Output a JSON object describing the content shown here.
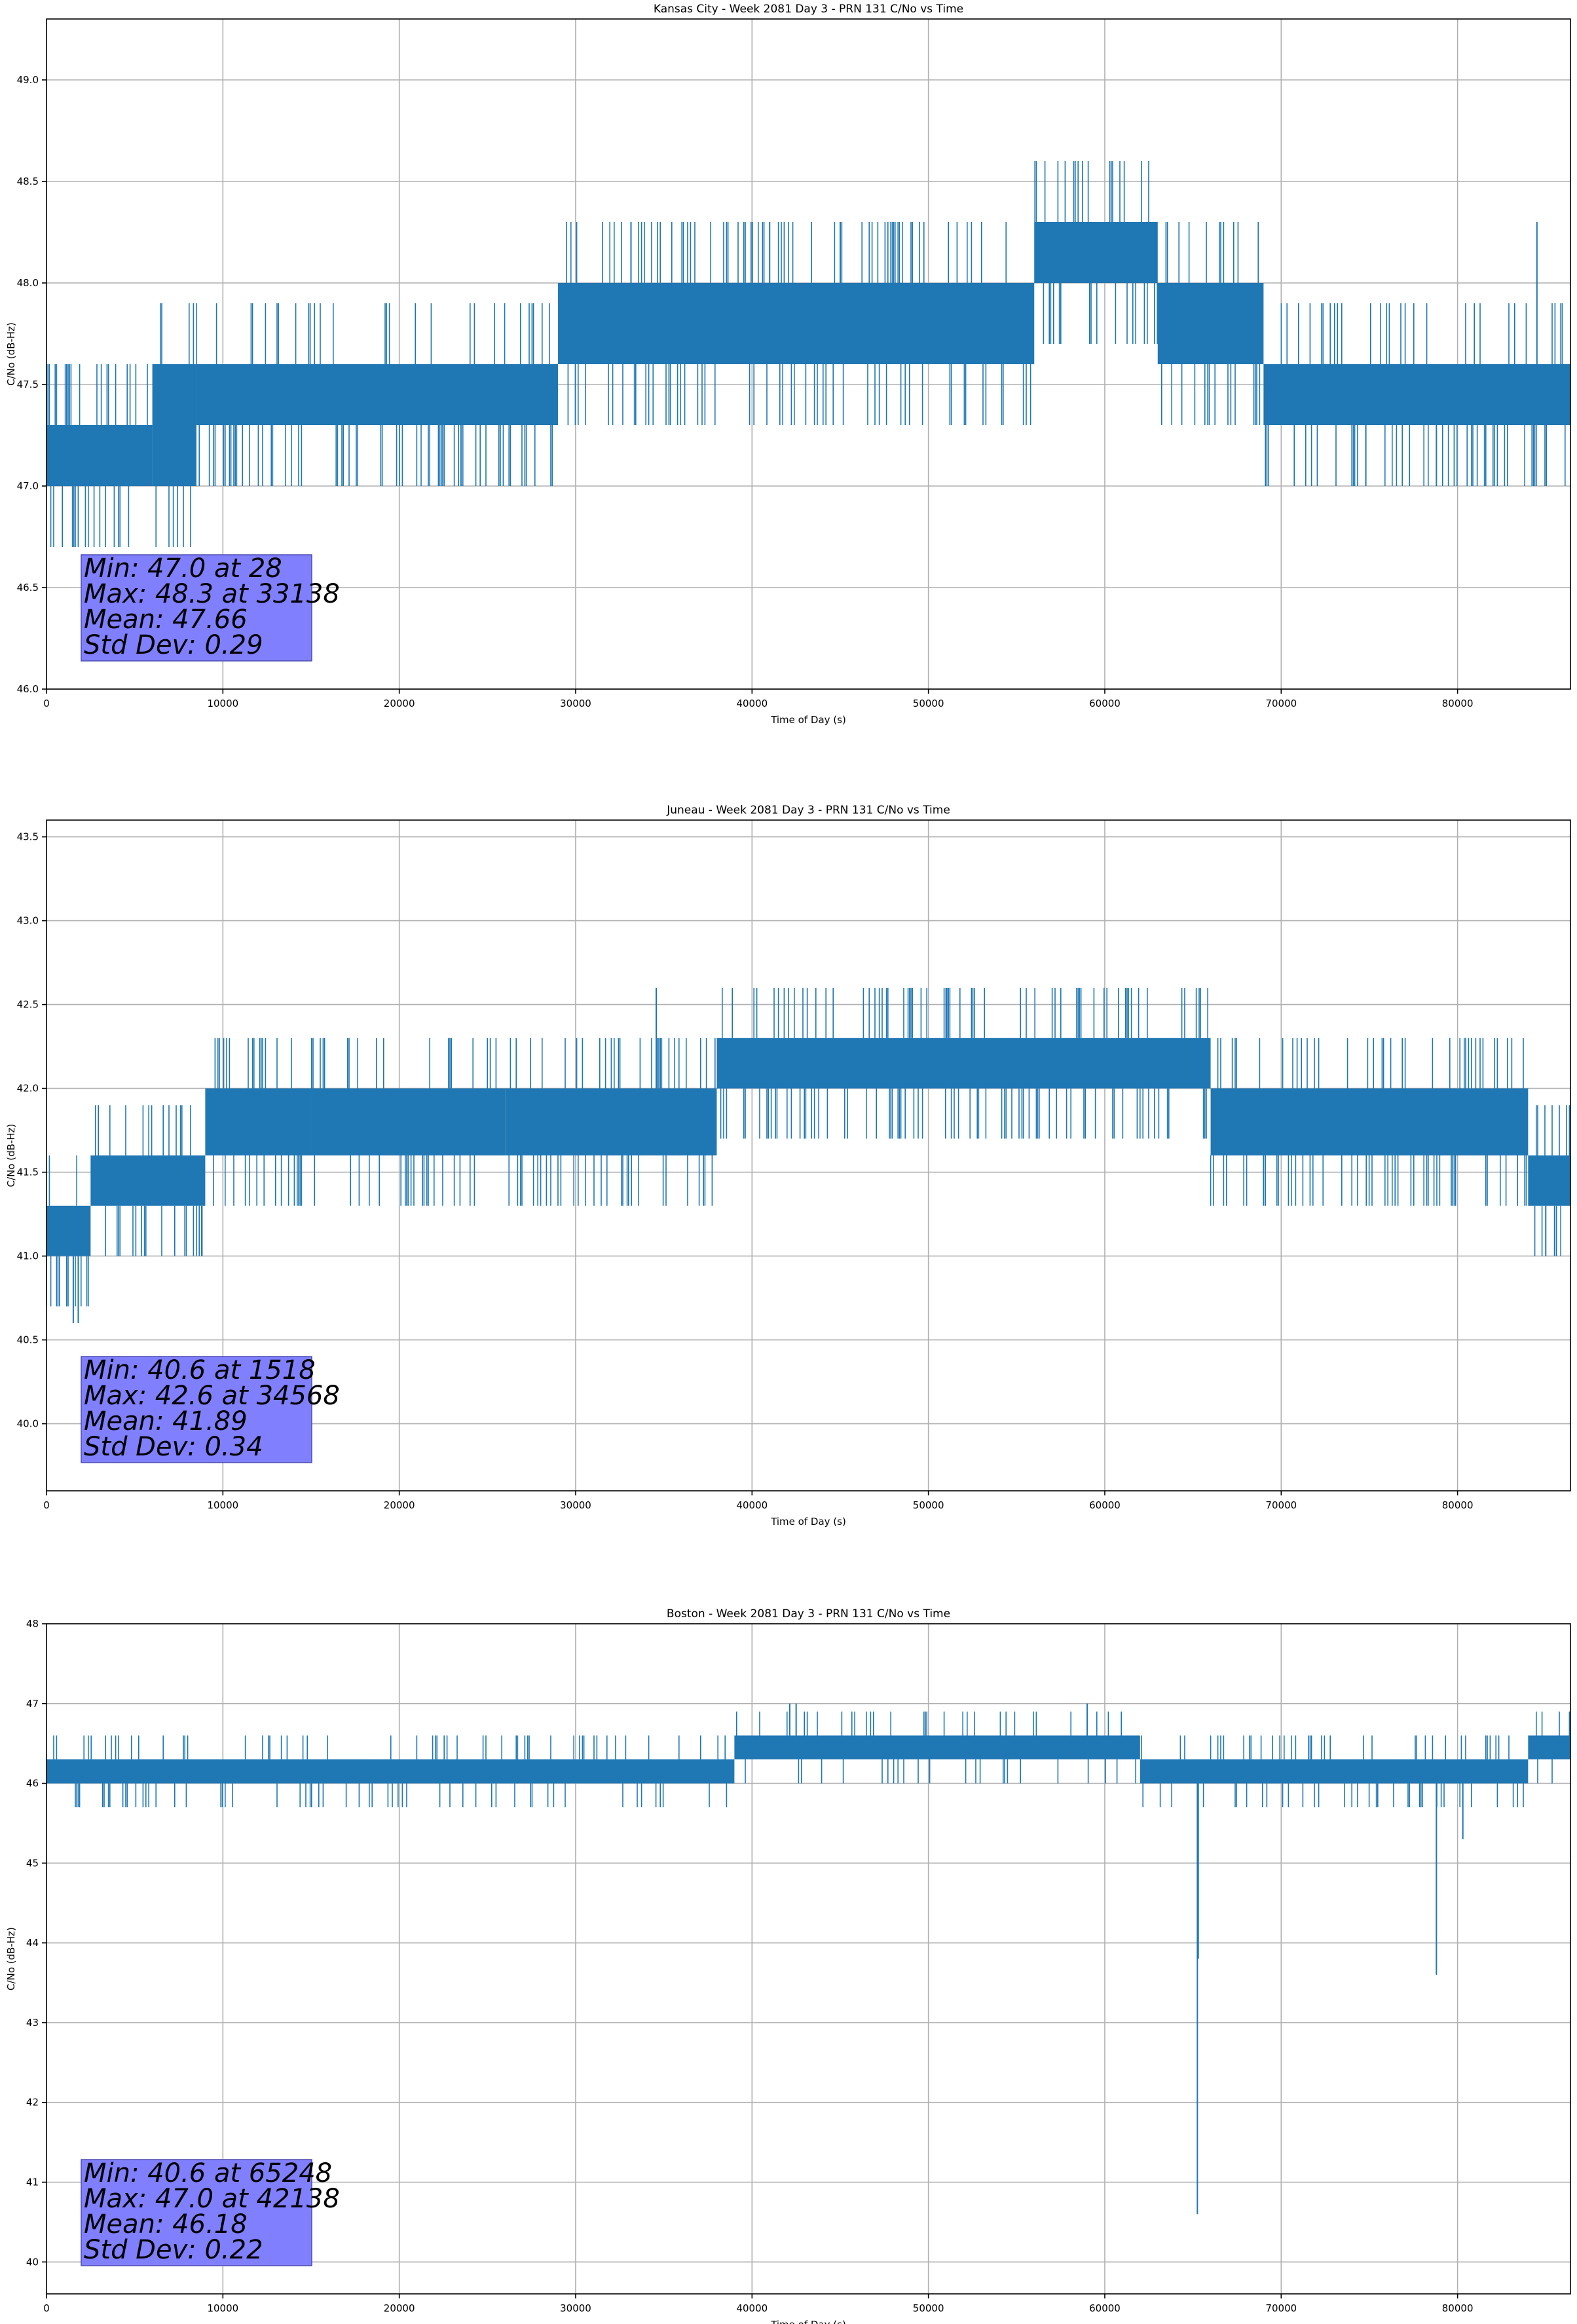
{
  "chart_data": [
    {
      "type": "line",
      "title": "Kansas City - Week 2081 Day 3 - PRN 131 C/No vs Time",
      "xlabel": "Time of Day (s)",
      "ylabel": "C/No (dB-Hz)",
      "xlim": [
        0,
        86400
      ],
      "ylim": [
        46.0,
        49.3
      ],
      "xticks": [
        0,
        10000,
        20000,
        30000,
        40000,
        50000,
        60000,
        70000,
        80000
      ],
      "yticks": [
        46.0,
        46.5,
        47.0,
        47.5,
        48.0,
        48.5,
        49.0
      ],
      "ytick_decimals": 1,
      "grid": true,
      "series_color": "#1f77b4",
      "stats_box_color": "#8080ff",
      "stats": [
        "Min: 47.0 at 28",
        "Max: 48.3 at 33138",
        "Mean: 47.66",
        "Std Dev: 0.29"
      ],
      "band_segments": [
        {
          "x": [
            0,
            6000
          ],
          "lo": 47.0,
          "hi": 47.3
        },
        {
          "x": [
            6000,
            8500
          ],
          "lo": 47.0,
          "hi": 47.6
        },
        {
          "x": [
            8500,
            29000
          ],
          "lo": 47.3,
          "hi": 47.6
        },
        {
          "x": [
            29000,
            56000
          ],
          "lo": 47.6,
          "hi": 48.0
        },
        {
          "x": [
            56000,
            63000
          ],
          "lo": 48.0,
          "hi": 48.3
        },
        {
          "x": [
            63000,
            69000
          ],
          "lo": 47.6,
          "hi": 48.0
        },
        {
          "x": [
            69000,
            86400
          ],
          "lo": 47.3,
          "hi": 47.6
        }
      ],
      "spikes": [
        {
          "x": 23500,
          "y": 47.0
        },
        {
          "x": 33138,
          "y": 48.3
        },
        {
          "x": 41000,
          "y": 48.3
        },
        {
          "x": 45000,
          "y": 48.3
        },
        {
          "x": 74800,
          "y": 47.0
        },
        {
          "x": 78800,
          "y": 47.0
        },
        {
          "x": 84500,
          "y": 48.3
        }
      ],
      "noise": {
        "amp": 0.3,
        "density": 0.35
      }
    },
    {
      "type": "line",
      "title": "Juneau - Week 2081 Day 3 - PRN 131 C/No vs Time",
      "xlabel": "Time of Day (s)",
      "ylabel": "C/No (dB-Hz)",
      "xlim": [
        0,
        86400
      ],
      "ylim": [
        39.6,
        43.6
      ],
      "xticks": [
        0,
        10000,
        20000,
        30000,
        40000,
        50000,
        60000,
        70000,
        80000
      ],
      "yticks": [
        40.0,
        40.5,
        41.0,
        41.5,
        42.0,
        42.5,
        43.0,
        43.5
      ],
      "ytick_decimals": 1,
      "grid": true,
      "series_color": "#1f77b4",
      "stats_box_color": "#8080ff",
      "stats": [
        "Min: 40.6 at 1518",
        "Max: 42.6 at 34568",
        "Mean: 41.89",
        "Std Dev: 0.34"
      ],
      "band_segments": [
        {
          "x": [
            0,
            2500
          ],
          "lo": 41.0,
          "hi": 41.3
        },
        {
          "x": [
            2500,
            9000
          ],
          "lo": 41.3,
          "hi": 41.6
        },
        {
          "x": [
            9000,
            15000
          ],
          "lo": 41.6,
          "hi": 42.0
        },
        {
          "x": [
            15000,
            26000
          ],
          "lo": 41.6,
          "hi": 42.0
        },
        {
          "x": [
            26000,
            38000
          ],
          "lo": 41.6,
          "hi": 42.0
        },
        {
          "x": [
            38000,
            66000
          ],
          "lo": 42.0,
          "hi": 42.3
        },
        {
          "x": [
            66000,
            84000
          ],
          "lo": 41.6,
          "hi": 42.0
        },
        {
          "x": [
            84000,
            86400
          ],
          "lo": 41.3,
          "hi": 41.6
        }
      ],
      "spikes": [
        {
          "x": 1518,
          "y": 40.6
        },
        {
          "x": 1800,
          "y": 40.6
        },
        {
          "x": 8800,
          "y": 41.0
        },
        {
          "x": 34568,
          "y": 42.6
        },
        {
          "x": 51000,
          "y": 42.6
        },
        {
          "x": 69000,
          "y": 41.3
        },
        {
          "x": 85000,
          "y": 41.0
        },
        {
          "x": 85500,
          "y": 41.0
        }
      ],
      "noise": {
        "amp": 0.3,
        "density": 0.35
      }
    },
    {
      "type": "line",
      "title": "Boston - Week 2081 Day 3 - PRN 131 C/No vs Time",
      "xlabel": "Time of Day (s)",
      "ylabel": "C/No (dB-Hz)",
      "xlim": [
        0,
        86400
      ],
      "ylim": [
        39.6,
        48.0
      ],
      "xticks": [
        0,
        10000,
        20000,
        30000,
        40000,
        50000,
        60000,
        70000,
        80000
      ],
      "yticks": [
        40,
        41,
        42,
        43,
        44,
        45,
        46,
        47,
        48
      ],
      "ytick_decimals": 0,
      "grid": true,
      "series_color": "#1f77b4",
      "stats_box_color": "#8080ff",
      "stats": [
        "Min: 40.6 at 65248",
        "Max: 47.0 at 42138",
        "Mean: 46.18",
        "Std Dev: 0.22"
      ],
      "band_segments": [
        {
          "x": [
            0,
            39000
          ],
          "lo": 46.0,
          "hi": 46.3
        },
        {
          "x": [
            39000,
            62000
          ],
          "lo": 46.3,
          "hi": 46.6
        },
        {
          "x": [
            62000,
            84000
          ],
          "lo": 46.0,
          "hi": 46.3
        },
        {
          "x": [
            84000,
            86400
          ],
          "lo": 46.3,
          "hi": 46.6
        }
      ],
      "spikes": [
        {
          "x": 42138,
          "y": 47.0
        },
        {
          "x": 42500,
          "y": 47.0
        },
        {
          "x": 59000,
          "y": 47.0
        },
        {
          "x": 65248,
          "y": 40.6
        },
        {
          "x": 65300,
          "y": 43.8
        },
        {
          "x": 78800,
          "y": 43.6
        },
        {
          "x": 80300,
          "y": 45.3
        }
      ],
      "noise": {
        "amp": 0.3,
        "density": 0.25
      }
    }
  ]
}
